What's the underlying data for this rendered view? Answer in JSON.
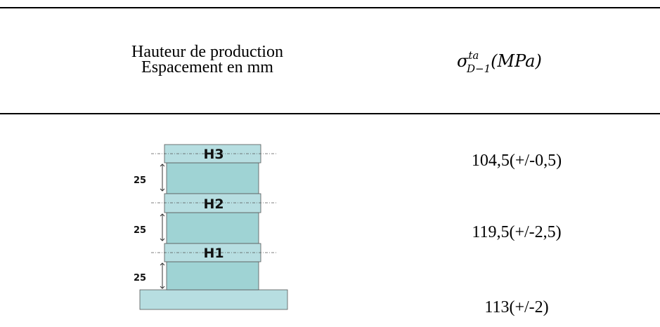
{
  "header": {
    "col1": [
      "Hauteur de production",
      "Espacement en mm"
    ],
    "col2": {
      "symbol": "σ",
      "superscript": "ta",
      "subscript": "D−1",
      "unit": "(MPa)"
    }
  },
  "diagram": {
    "levels": [
      "H3",
      "H2",
      "H1"
    ],
    "spacings": [
      25,
      25,
      25
    ]
  },
  "rows": [
    "104,5(+/-0,5)",
    "119,5(+/-2,5)",
    "113(+/-2)"
  ]
}
